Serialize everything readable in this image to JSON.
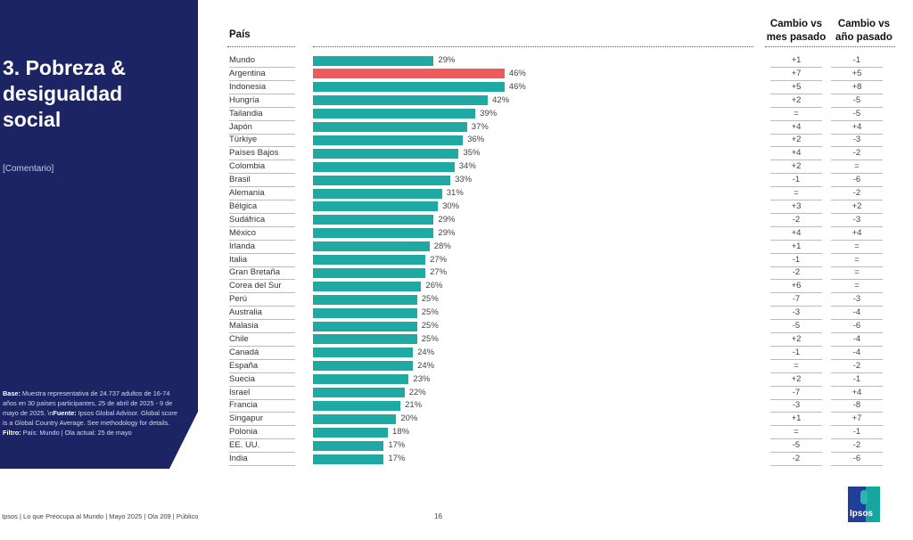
{
  "panel": {
    "title": "3. Pobreza & desigualdad social",
    "comment": "[Comentario]",
    "footnote": {
      "base_label": "Base:",
      "base_text": " Muestra representativa de 24.737 adultos de 16-74 años en 30 países participantes, 25 de abril de 2025 - 9 de mayo de 2025. \\n",
      "fuente_label": "Fuente:",
      "fuente_text": " Ipsos Global Advisor. Global score is a Global Country Average. See methodology for details. ",
      "filtro_label": "Filtro:",
      "filtro_text": " País: Mundo | Ola actual: 25 de mayo"
    }
  },
  "headers": {
    "country": "País",
    "change_month": "Cambio vs mes pasado",
    "change_year": "Cambio vs año pasado"
  },
  "colors": {
    "bar": "#1fa9a3",
    "highlight": "#ef5a5a",
    "panel": "#1c2463"
  },
  "chart_data": {
    "type": "bar",
    "orientation": "horizontal",
    "unit": "%",
    "xlim": [
      0,
      100
    ],
    "highlight": "Argentina",
    "categories": [
      "Mundo",
      "Argentina",
      "Indonesia",
      "Hungría",
      "Tailandia",
      "Japón",
      "Türkiye",
      "Países Bajos",
      "Colombia",
      "Brasil",
      "Alemania",
      "Bélgica",
      "Sudáfrica",
      "México",
      "Irlanda",
      "Italia",
      "Gran Bretaña",
      "Corea del Sur",
      "Perú",
      "Australia",
      "Malasia",
      "Chile",
      "Canadá",
      "España",
      "Suecia",
      "Israel",
      "Francia",
      "Singapur",
      "Polonia",
      "EE. UU.",
      "India"
    ],
    "values": [
      29,
      46,
      46,
      42,
      39,
      37,
      36,
      35,
      34,
      33,
      31,
      30,
      29,
      29,
      28,
      27,
      27,
      26,
      25,
      25,
      25,
      25,
      24,
      24,
      23,
      22,
      21,
      20,
      18,
      17,
      17
    ],
    "change_month": [
      "+1",
      "+7",
      "+5",
      "+2",
      "=",
      "+4",
      "+2",
      "+4",
      "+2",
      "-1",
      "=",
      "+3",
      "-2",
      "+4",
      "+1",
      "-1",
      "-2",
      "+6",
      "-7",
      "-3",
      "-5",
      "+2",
      "-1",
      "=",
      "+2",
      "-7",
      "-3",
      "+1",
      "=",
      "-5",
      "-2"
    ],
    "change_year": [
      "-1",
      "+5",
      "+8",
      "-5",
      "-5",
      "+4",
      "-3",
      "-2",
      "=",
      "-6",
      "-2",
      "+2",
      "-3",
      "+4",
      "=",
      "=",
      "=",
      "=",
      "-3",
      "-4",
      "-6",
      "-4",
      "-4",
      "-2",
      "-1",
      "+4",
      "-8",
      "+7",
      "-1",
      "-2",
      "-6"
    ]
  },
  "footer": {
    "text": "Ipsos | Lo que Preocupa al Mundo | Mayo 2025 | Ola 209 | Público",
    "page": "16",
    "logo": "Ipsos"
  }
}
